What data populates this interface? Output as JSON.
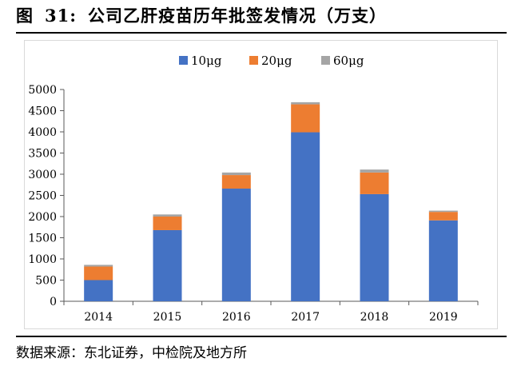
{
  "figure": {
    "label": "图",
    "number": "31:",
    "title": "公司乙肝疫苗历年批签发情况（万支）"
  },
  "source": "数据来源：东北证券，中检院及地方所",
  "chart_data": {
    "type": "bar",
    "stacked": true,
    "categories": [
      "2014",
      "2015",
      "2016",
      "2017",
      "2018",
      "2019"
    ],
    "series": [
      {
        "name": "10μg",
        "color": "#4472C4",
        "values": [
          500,
          1680,
          2660,
          3990,
          2530,
          1910
        ]
      },
      {
        "name": "20μg",
        "color": "#ED7D31",
        "values": [
          320,
          320,
          320,
          660,
          510,
          200
        ]
      },
      {
        "name": "60μg",
        "color": "#A5A5A5",
        "values": [
          40,
          50,
          60,
          50,
          70,
          30
        ]
      }
    ],
    "ylim": [
      0,
      5000
    ],
    "yticks": [
      "0",
      "500",
      "1000",
      "1500",
      "2000",
      "2500",
      "3000",
      "3500",
      "4000",
      "4500",
      "5000"
    ],
    "legend": "top-center",
    "grid": false
  }
}
